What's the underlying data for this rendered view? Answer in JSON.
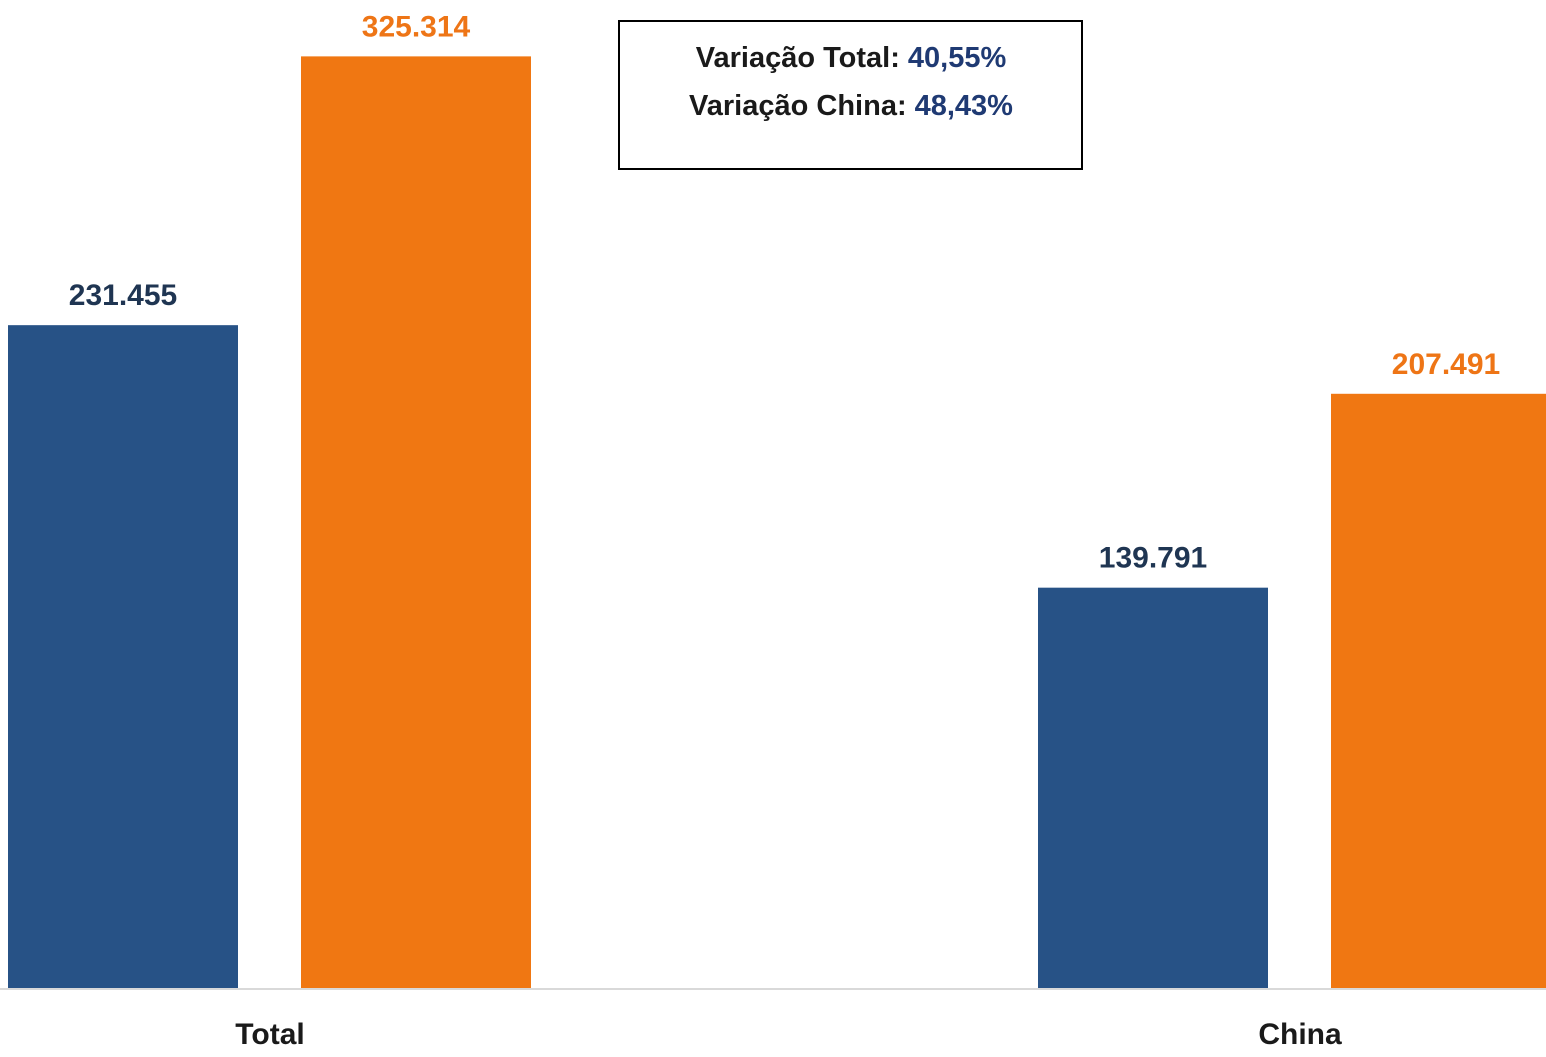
{
  "chart_data": {
    "type": "bar",
    "categories": [
      "Total",
      "China"
    ],
    "series": [
      {
        "values": [
          231455,
          139791
        ],
        "labels": [
          "231.455",
          "139.791"
        ],
        "color": "#275286",
        "label_color": "#1f3552"
      },
      {
        "values": [
          325314,
          207491
        ],
        "labels": [
          "325.314",
          "207.491"
        ],
        "color": "#f07712",
        "label_color": "#ee7516"
      }
    ],
    "title": "",
    "xlabel": "",
    "ylabel": "",
    "ylim": [
      0,
      345000
    ],
    "grid": false,
    "legend": "none",
    "annotation": {
      "lines": [
        {
          "label": "Variação Total:",
          "value": "40,55%"
        },
        {
          "label": "Variação China:",
          "value": "48,43%"
        }
      ],
      "label_color": "#1a1a1a",
      "value_color": "#1f3a73"
    },
    "axis_color": "#d9d9d9",
    "category_label_color": "#1a1a1a"
  }
}
